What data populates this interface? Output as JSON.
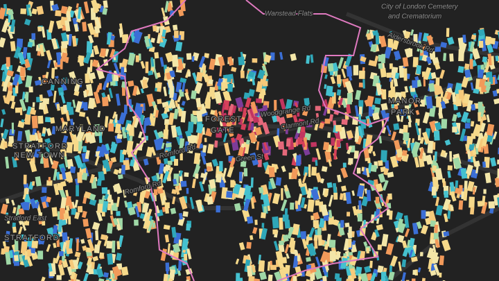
{
  "map": {
    "labels": [
      "Wanstead Flats",
      "City of London Cemetery",
      "and Crematorium",
      "Aldersbrook Rd",
      "MANOR",
      "PARK",
      "FOREST",
      "GATE",
      "Romford Rd",
      "Romford Rd",
      "Stratford East",
      "STRATFORD",
      "STRATFORD",
      "NEW TOWN",
      "MARYLAND",
      "CANNING",
      "Green St",
      "Clarmont Rd",
      "Woodgrange Rd"
    ]
  }
}
